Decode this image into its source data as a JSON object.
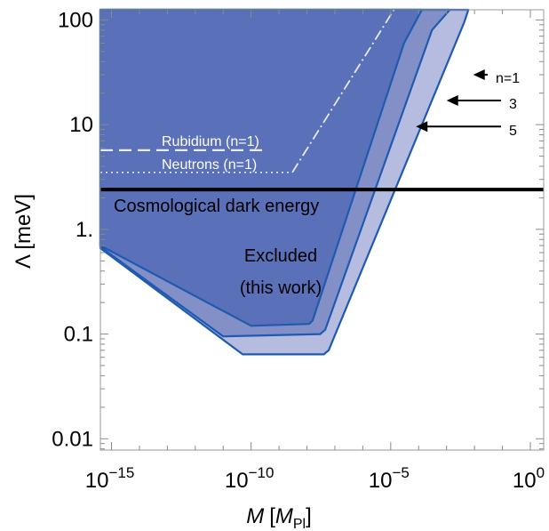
{
  "chart_data": {
    "type": "area",
    "xlabel": "M [M_Pl]",
    "ylabel": "Λ [meV]",
    "x_scale": "log",
    "y_scale": "log",
    "xlim": [
      4e-16,
      3
    ],
    "ylim": [
      0.0078,
      125
    ],
    "x_ticks": [
      {
        "value": 1e-15,
        "label": "10",
        "exp": "−15"
      },
      {
        "value": 1e-10,
        "label": "10",
        "exp": "−10"
      },
      {
        "value": 1e-05,
        "label": "10",
        "exp": "−5"
      },
      {
        "value": 1,
        "label": "10",
        "exp": "0"
      }
    ],
    "y_ticks": [
      {
        "value": 100,
        "label": "100"
      },
      {
        "value": 10,
        "label": "10"
      },
      {
        "value": 1,
        "label": "1."
      },
      {
        "value": 0.1,
        "label": "0.1"
      },
      {
        "value": 0.01,
        "label": "0.01"
      }
    ],
    "colors": {
      "region_n1": "#b6bce0",
      "region_n3": "#8390c8",
      "region_n5": "#5a70b8",
      "boundary": "#1f5ab0",
      "dark_energy": "#000000",
      "rubidium": "#e8ecf6",
      "neutrons": "#e8ecf6"
    },
    "series": [
      {
        "name": "n=1",
        "label_text": "n=1",
        "boundary": [
          [
            4e-16,
            0.66
          ],
          [
            5e-11,
            0.064
          ],
          [
            4e-08,
            0.064
          ],
          [
            6e-08,
            0.07
          ],
          [
            0.0043,
            95
          ],
          [
            0.006,
            125
          ],
          [
            4e-16,
            125
          ]
        ]
      },
      {
        "name": "3",
        "label_text": "3",
        "boundary": [
          [
            4e-16,
            0.68
          ],
          [
            1e-11,
            0.095
          ],
          [
            3e-08,
            0.1
          ],
          [
            4.5e-08,
            0.11
          ],
          [
            0.0003,
            80
          ],
          [
            0.0013,
            125
          ],
          [
            4e-16,
            125
          ]
        ]
      },
      {
        "name": "5",
        "label_text": "5",
        "boundary": [
          [
            4e-16,
            0.7
          ],
          [
            1e-10,
            0.12
          ],
          [
            1.2e-08,
            0.125
          ],
          [
            1.6e-08,
            0.135
          ],
          [
            3e-05,
            60
          ],
          [
            0.00013,
            125
          ],
          [
            4e-16,
            125
          ]
        ]
      }
    ],
    "lines": [
      {
        "name": "Cosmological dark energy",
        "y": 2.4,
        "x_range": [
          4e-16,
          3
        ]
      },
      {
        "name": "Rubidium (n=1)",
        "y": 5.7,
        "x_range": [
          4e-16,
          4e-10
        ]
      },
      {
        "name": "Neutrons (n=1)",
        "y": 3.5,
        "x_range": [
          4e-16,
          3e-09
        ]
      }
    ],
    "extension_line": [
      [
        3e-09,
        3.5
      ],
      [
        1.3e-05,
        125
      ]
    ],
    "annotations": [
      {
        "name": "excluded-label",
        "lines": [
          "Excluded",
          "(this work)"
        ],
        "x": 5e-08,
        "y": 0.27
      }
    ],
    "arrows": [
      {
        "name": "n1",
        "label": "n=1",
        "target": [
          0.007,
          30
        ],
        "tip_x": 0.009
      },
      {
        "name": "n3",
        "label": "3",
        "target": [
          0.0007,
          17
        ],
        "tip_x": 0.001
      },
      {
        "name": "n5",
        "label": "5",
        "target": [
          5e-05,
          9.6
        ],
        "tip_x": 8e-05
      }
    ]
  },
  "text": {
    "rubidium": "Rubidium (n=1)",
    "neutrons": "Neutrons (n=1)",
    "dark_energy": "Cosmological dark energy",
    "excluded_1": "Excluded",
    "excluded_2": "(this work)",
    "n1": "n=1",
    "n3": "3",
    "n5": "5",
    "xlabel_M": "M",
    "xlabel_unit_open": "[",
    "xlabel_unit": "M",
    "xlabel_sub": "Pl",
    "xlabel_unit_close": "]",
    "ylabel": "Λ [meV]"
  }
}
